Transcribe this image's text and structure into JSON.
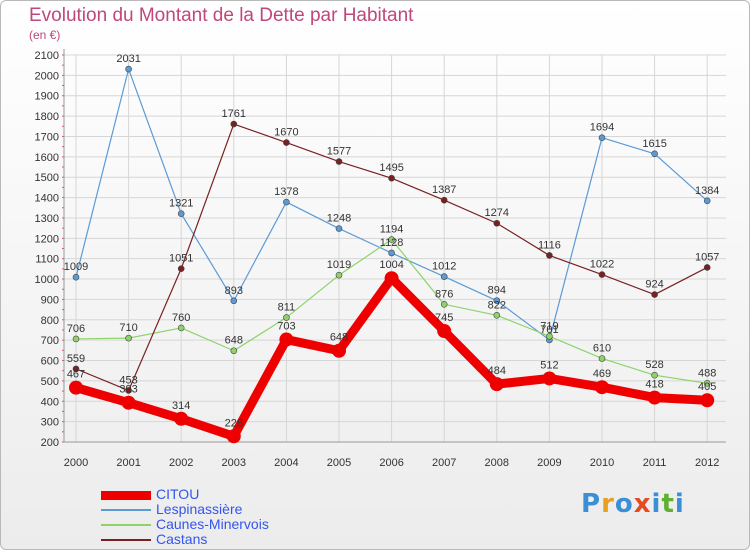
{
  "title": "Evolution du Montant de la Dette par Habitant",
  "unit": "(en €)",
  "logo": {
    "letters": [
      "P",
      "r",
      "o",
      "x",
      "i",
      "t",
      "i"
    ],
    "colors": [
      "#3a8fd6",
      "#e8a020",
      "#3a8fd6",
      "#e84a20",
      "#3a8fd6",
      "#60b030",
      "#3a8fd6"
    ]
  },
  "chart_data": {
    "type": "line",
    "categories": [
      "2000",
      "2001",
      "2002",
      "2003",
      "2004",
      "2005",
      "2006",
      "2007",
      "2008",
      "2009",
      "2010",
      "2011",
      "2012"
    ],
    "ylim": [
      200,
      2100
    ],
    "yticks": [
      200,
      300,
      400,
      500,
      600,
      700,
      800,
      900,
      1000,
      1100,
      1200,
      1300,
      1400,
      1500,
      1600,
      1700,
      1800,
      1900,
      2000,
      2100
    ],
    "grid": true,
    "legend_position": "bottom-left",
    "series": [
      {
        "name": "CITOU",
        "color": "#ee0000",
        "width": 9,
        "marker": 7,
        "values": [
          467,
          393,
          314,
          228,
          703,
          648,
          1004,
          745,
          484,
          512,
          469,
          418,
          405
        ],
        "labels": [
          "467",
          "393",
          "314",
          "228",
          "703",
          "648",
          "1004",
          "745",
          "484",
          "512",
          "469",
          "418",
          "405"
        ]
      },
      {
        "name": "Lespinassière",
        "color": "#5b9bd5",
        "width": 1.2,
        "marker": 3,
        "values": [
          1009,
          2031,
          1321,
          893,
          1378,
          1248,
          1128,
          1012,
          894,
          701,
          1694,
          1615,
          1384
        ],
        "labels": [
          "1009",
          "2031",
          "1321",
          "893",
          "1378",
          "1248",
          "1128",
          "1012",
          "894",
          "701",
          "1694",
          "1615",
          "1384"
        ]
      },
      {
        "name": "Caunes-Minervois",
        "color": "#8dd36a",
        "width": 1.2,
        "marker": 3,
        "values": [
          706,
          710,
          760,
          648,
          811,
          1019,
          1194,
          876,
          822,
          719,
          610,
          528,
          488
        ],
        "labels": [
          "706",
          "710",
          "760",
          "648",
          "811",
          "1019",
          "1194",
          "876",
          "822",
          "719",
          "610",
          "528",
          "488"
        ]
      },
      {
        "name": "Castans",
        "color": "#7a2020",
        "width": 1.2,
        "marker": 3,
        "values": [
          559,
          453,
          1051,
          1761,
          1670,
          1577,
          1495,
          1387,
          1274,
          1116,
          1022,
          924,
          1057
        ],
        "labels": [
          "559",
          "453",
          "1051",
          "1761",
          "1670",
          "1577",
          "1495",
          "1387",
          "1274",
          "1116",
          "1022",
          "924",
          "1057"
        ]
      }
    ]
  }
}
